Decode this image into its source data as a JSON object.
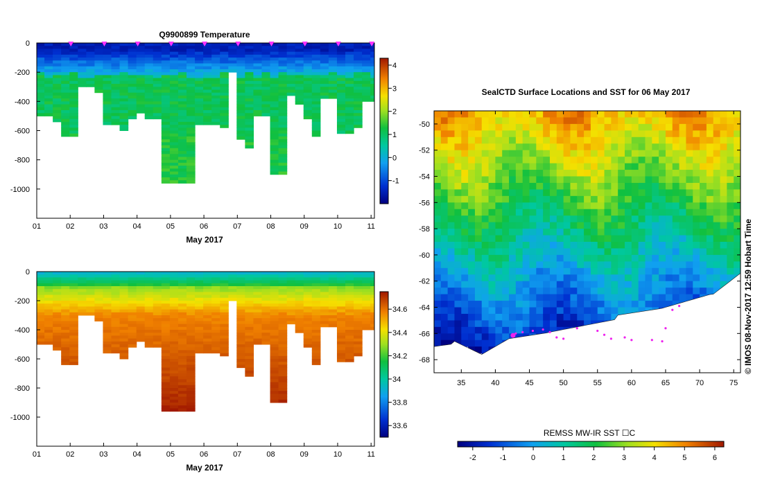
{
  "chart_data": [
    {
      "type": "heatmap",
      "name": "temperature-section",
      "title": "Q9900899  Temperature",
      "xlabel": "May 2017",
      "x_ticks": [
        "01",
        "02",
        "03",
        "04",
        "05",
        "06",
        "07",
        "08",
        "09",
        "10",
        "11"
      ],
      "y_ticks": [
        "0",
        "-200",
        "-400",
        "-600",
        "-800",
        "-1000"
      ],
      "ylim": [
        -1200,
        0
      ],
      "xlim": [
        1,
        11.1
      ],
      "profile_days": [
        1.0,
        1.25,
        1.5,
        1.75,
        2.0,
        2.25,
        2.5,
        2.75,
        3.0,
        3.25,
        3.5,
        3.75,
        4.0,
        4.25,
        4.5,
        4.75,
        5.0,
        5.25,
        5.5,
        5.75,
        6.0,
        6.25,
        6.5,
        6.75,
        7.0,
        7.25,
        7.5,
        7.75,
        8.0,
        8.25,
        8.5,
        8.75,
        9.0,
        9.25,
        9.5,
        9.75,
        10.0,
        10.25,
        10.5,
        10.75,
        11.0
      ],
      "profile_max_depth": [
        500,
        500,
        540,
        630,
        630,
        300,
        300,
        340,
        550,
        550,
        590,
        520,
        470,
        520,
        520,
        960,
        960,
        960,
        960,
        560,
        560,
        560,
        570,
        200,
        650,
        720,
        500,
        500,
        890,
        890,
        350,
        420,
        520,
        640,
        380,
        380,
        610,
        610,
        570,
        400,
        400
      ],
      "colorbar_ticks": [
        "4",
        "3",
        "2",
        "1",
        "0",
        "-1"
      ],
      "colorbar_range": [
        -2,
        4.3
      ],
      "profile_marker_days": [
        2,
        3,
        4,
        5,
        6,
        7,
        8,
        9,
        10,
        11
      ],
      "marker_color": "#ff33ff"
    },
    {
      "type": "heatmap",
      "name": "salinity-section",
      "title": "",
      "xlabel": "May 2017",
      "x_ticks": [
        "01",
        "02",
        "03",
        "04",
        "05",
        "06",
        "07",
        "08",
        "09",
        "10",
        "11"
      ],
      "y_ticks": [
        "0",
        "-200",
        "-400",
        "-600",
        "-800",
        "-1000"
      ],
      "ylim": [
        -1200,
        0
      ],
      "xlim": [
        1,
        11.1
      ],
      "colorbar_ticks": [
        "34.6",
        "34.4",
        "34.2",
        "34",
        "33.8",
        "33.6"
      ],
      "colorbar_range": [
        33.5,
        34.75
      ]
    },
    {
      "type": "heatmap",
      "name": "sst-map",
      "title": "SealCTD Surface Locations and SST for 06 May 2017",
      "x_ticks": [
        "35",
        "40",
        "45",
        "50",
        "55",
        "60",
        "65",
        "70",
        "75"
      ],
      "y_ticks": [
        "-50",
        "-52",
        "-54",
        "-56",
        "-58",
        "-60",
        "-62",
        "-64",
        "-66",
        "-68"
      ],
      "xlim": [
        31,
        76
      ],
      "ylim": [
        -69,
        -49
      ],
      "colorbar_label": "REMSS MW-IR SST ☐C",
      "colorbar_ticks": [
        "-2",
        "-1",
        "0",
        "1",
        "2",
        "3",
        "4",
        "5",
        "6"
      ],
      "colorbar_range": [
        -2.5,
        6.3
      ],
      "credit": "©  IMOS 08-Nov-2017 12:59 Hobart Time",
      "track_color": "#ee22ee"
    }
  ]
}
